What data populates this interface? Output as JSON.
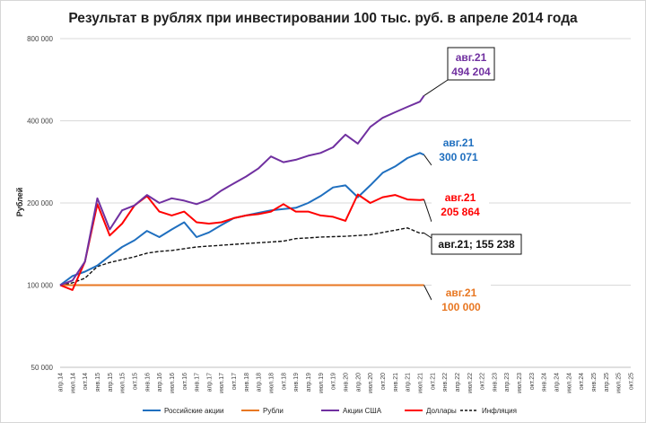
{
  "chart_data": {
    "type": "line",
    "title": "Результат в рублях при инвестировании 100 тыс. руб. в апреле 2014 года",
    "ylabel": "Рублей",
    "xlabel": "",
    "y_scale": "log",
    "ylim": [
      50000,
      800000
    ],
    "y_ticks": [
      {
        "value": 50000,
        "label": "50 000"
      },
      {
        "value": 100000,
        "label": "100 000"
      },
      {
        "value": 200000,
        "label": "200 000"
      },
      {
        "value": 400000,
        "label": "400 000"
      },
      {
        "value": 800000,
        "label": "800 000"
      }
    ],
    "grid": "horizontal",
    "legend_position": "bottom",
    "x_labels": [
      "апр.14",
      "июл.14",
      "окт.14",
      "янв.15",
      "апр.15",
      "июл.15",
      "окт.15",
      "янв.16",
      "апр.16",
      "июл.16",
      "окт.16",
      "янв.17",
      "апр.17",
      "июл.17",
      "окт.17",
      "янв.18",
      "апр.18",
      "июл.18",
      "окт.18",
      "янв.19",
      "апр.19",
      "июл.19",
      "окт.19",
      "янв.20",
      "апр.20",
      "июл.20",
      "окт.20",
      "янв.21",
      "апр.21",
      "июл.21",
      "окт.21",
      "янв.22",
      "апр.22",
      "июл.22",
      "окт.22",
      "янв.23",
      "апр.23",
      "июл.23",
      "окт.23",
      "янв.24",
      "апр.24",
      "июл.24",
      "окт.24",
      "янв.25",
      "апр.25",
      "июл.25",
      "окт.25"
    ],
    "series": [
      {
        "name": "Российские акции",
        "color": "#1f6fbf",
        "x_labels_at": [
          "апр.14",
          "июл.14",
          "окт.14",
          "янв.15",
          "апр.15",
          "июл.15",
          "окт.15",
          "янв.16",
          "апр.16",
          "июл.16",
          "окт.16",
          "янв.17",
          "апр.17",
          "июл.17",
          "окт.17",
          "янв.18",
          "апр.18",
          "июл.18",
          "окт.18",
          "янв.19",
          "апр.19",
          "июл.19",
          "окт.19",
          "янв.20",
          "апр.20",
          "июл.20",
          "окт.20",
          "янв.21",
          "апр.21",
          "июл.21",
          "авг.21"
        ],
        "values": [
          100000,
          108000,
          112000,
          118000,
          128000,
          138000,
          146000,
          158000,
          150000,
          160000,
          170000,
          150000,
          156000,
          166000,
          176000,
          180000,
          184000,
          188000,
          190000,
          192000,
          200000,
          212000,
          228000,
          232000,
          210000,
          232000,
          258000,
          272000,
          292000,
          305000,
          300071
        ]
      },
      {
        "name": "Рубли",
        "color": "#e87722",
        "x_labels_at": [
          "апр.14",
          "авг.21"
        ],
        "values": [
          100000,
          100000
        ]
      },
      {
        "name": "Акции США",
        "color": "#7030a0",
        "x_labels_at": [
          "апр.14",
          "июл.14",
          "окт.14",
          "янв.15",
          "апр.15",
          "июл.15",
          "окт.15",
          "янв.16",
          "апр.16",
          "июл.16",
          "окт.16",
          "янв.17",
          "апр.17",
          "июл.17",
          "окт.17",
          "янв.18",
          "апр.18",
          "июл.18",
          "окт.18",
          "янв.19",
          "апр.19",
          "июл.19",
          "окт.19",
          "янв.20",
          "апр.20",
          "июл.20",
          "окт.20",
          "янв.21",
          "апр.21",
          "июл.21",
          "авг.21"
        ],
        "values": [
          100000,
          104000,
          122000,
          208000,
          160000,
          188000,
          196000,
          214000,
          200000,
          208000,
          204000,
          198000,
          206000,
          222000,
          236000,
          250000,
          268000,
          296000,
          282000,
          288000,
          298000,
          305000,
          320000,
          356000,
          330000,
          380000,
          410000,
          430000,
          450000,
          470000,
          494204
        ]
      },
      {
        "name": "Доллары",
        "color": "#ff0000",
        "x_labels_at": [
          "апр.14",
          "июл.14",
          "окт.14",
          "янв.15",
          "апр.15",
          "июл.15",
          "окт.15",
          "янв.16",
          "апр.16",
          "июл.16",
          "окт.16",
          "янв.17",
          "апр.17",
          "июл.17",
          "окт.17",
          "янв.18",
          "апр.18",
          "июл.18",
          "окт.18",
          "янв.19",
          "апр.19",
          "июл.19",
          "окт.19",
          "янв.20",
          "апр.20",
          "июл.20",
          "окт.20",
          "янв.21",
          "апр.21",
          "июл.21",
          "авг.21"
        ],
        "values": [
          100000,
          96000,
          122000,
          198000,
          152000,
          168000,
          196000,
          212000,
          186000,
          180000,
          186000,
          170000,
          168000,
          170000,
          176000,
          180000,
          182000,
          186000,
          198000,
          186000,
          186000,
          180000,
          178000,
          172000,
          215000,
          200000,
          210000,
          214000,
          206000,
          205000,
          205864
        ]
      },
      {
        "name": "Инфляция",
        "color": "#111111",
        "dashed": true,
        "x_labels_at": [
          "апр.14",
          "июл.14",
          "окт.14",
          "янв.15",
          "апр.15",
          "июл.15",
          "окт.15",
          "янв.16",
          "апр.16",
          "июл.16",
          "окт.16",
          "янв.17",
          "апр.17",
          "июл.17",
          "окт.17",
          "янв.18",
          "апр.18",
          "июл.18",
          "окт.18",
          "янв.19",
          "апр.19",
          "июл.19",
          "окт.19",
          "янв.20",
          "апр.20",
          "июл.20",
          "окт.20",
          "янв.21",
          "апр.21",
          "июл.21",
          "авг.21"
        ],
        "values": [
          100000,
          102000,
          106000,
          117000,
          121000,
          124000,
          127000,
          131000,
          133000,
          134000,
          136000,
          138000,
          139000,
          140000,
          141000,
          142000,
          143000,
          144000,
          145000,
          148000,
          149000,
          150000,
          150500,
          151000,
          152000,
          153000,
          156000,
          159000,
          162000,
          155000,
          155238
        ]
      }
    ],
    "annotations": [
      {
        "series": "Акции США",
        "line1": "авг.21",
        "line2": "494 204",
        "color": "#7030a0",
        "boxed": true
      },
      {
        "series": "Российские акции",
        "line1": "авг.21",
        "line2": "300 071",
        "color": "#1f6fbf",
        "boxed": false
      },
      {
        "series": "Доллары",
        "line1": "авг.21",
        "line2": "205 864",
        "color": "#ff0000",
        "boxed": false
      },
      {
        "series": "Инфляция",
        "line1": "авг.21; 155 238",
        "line2": "",
        "color": "#111111",
        "boxed": true
      },
      {
        "series": "Рубли",
        "line1": "авг.21",
        "line2": "100 000",
        "color": "#e87722",
        "boxed": false
      }
    ]
  }
}
